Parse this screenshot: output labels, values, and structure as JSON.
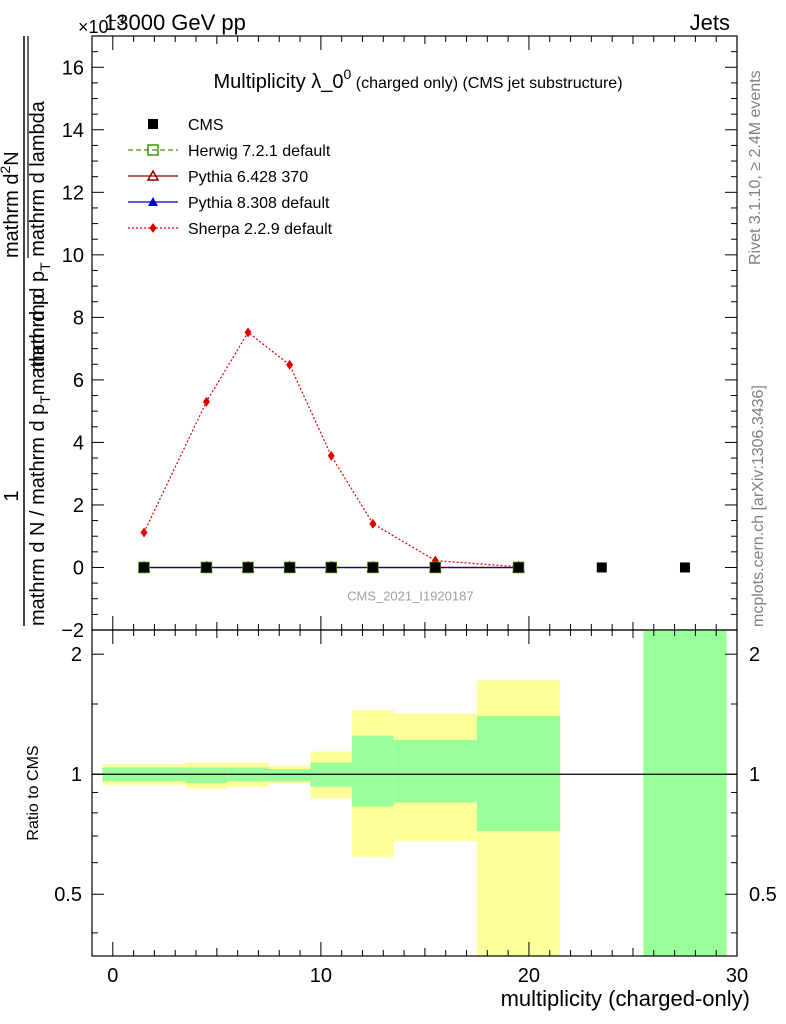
{
  "header": {
    "left": "13000 GeV pp",
    "right": "Jets",
    "exponent_base": "×10",
    "exponent_power": "−3"
  },
  "side_text": {
    "rivet": "Rivet 3.1.10, ≥ 2.4M events",
    "mcplots": "mcplots.cern.ch [arXiv:1306.3436]"
  },
  "watermark": "CMS_2021_I1920187",
  "title": {
    "main": "Multiplicity λ_0",
    "sup": "0",
    "suffix": " (charged only) (CMS jet substructure)"
  },
  "y_label": {
    "numerator": "1",
    "denominator": "mathrm d N / mathrm d p",
    "denominator_sub": "T",
    "denominator_tail": "mathrm d p",
    "right_num": "mathrm d",
    "right_sup": "2",
    "right_n": "N",
    "right_den": "mathrm d p",
    "right_den_sub": "T",
    "right_den_tail": " mathrm d lambda"
  },
  "ratio_ylabel": "Ratio to CMS",
  "x_label": "multiplicity (charged-only)",
  "colors": {
    "herwig": "#3a9a00",
    "pythia6": "#8b0000",
    "pythia8": "#0000cc",
    "sherpa": "#e00000",
    "cms": "#000000",
    "band_inner": "#99ff99",
    "band_outer": "#ffff99"
  },
  "chart_data": [
    {
      "type": "line",
      "title": "Multiplicity λ_0^0 (charged only) (CMS jet substructure)",
      "xlabel": "multiplicity (charged-only)",
      "ylabel": "1 / (mathrm d N / mathrm d p_T mathrm d p_T) · mathrm d^2N / (mathrm d p_T mathrm d lambda)",
      "xlim": [
        -1,
        30
      ],
      "ylim": [
        -2,
        17
      ],
      "y_scale_factor": "×10^-3",
      "x_ticks": [
        0,
        10,
        20,
        30
      ],
      "y_ticks": [
        -2,
        0,
        2,
        4,
        6,
        8,
        10,
        12,
        14,
        16
      ],
      "legend_position": "top-left",
      "series": [
        {
          "name": "CMS",
          "marker": "square",
          "x": [
            1.5,
            4.5,
            6.5,
            8.5,
            10.5,
            12.5,
            15.5,
            19.5,
            23.5,
            27.5
          ],
          "values": [
            0,
            0,
            0,
            0,
            0,
            0,
            0,
            0,
            0,
            0
          ]
        },
        {
          "name": "Herwig 7.2.1 default",
          "marker": "open-square",
          "line": "dashed",
          "x": [
            1.5,
            4.5,
            6.5,
            8.5,
            10.5,
            12.5,
            15.5,
            19.5
          ],
          "values": [
            0,
            0,
            0,
            0,
            0,
            0,
            0,
            0
          ]
        },
        {
          "name": "Pythia 6.428 370",
          "marker": "open-triangle",
          "line": "solid",
          "x": [
            1.5,
            4.5,
            6.5,
            8.5,
            10.5,
            12.5,
            15.5,
            19.5
          ],
          "values": [
            0,
            0,
            0,
            0,
            0,
            0,
            0,
            0
          ]
        },
        {
          "name": "Pythia 8.308 default",
          "marker": "triangle",
          "line": "solid",
          "x": [
            1.5,
            4.5,
            6.5,
            8.5,
            10.5,
            12.5,
            15.5,
            19.5
          ],
          "values": [
            0,
            0,
            0,
            0,
            0,
            0,
            0,
            0
          ]
        },
        {
          "name": "Sherpa 2.2.9 default",
          "marker": "diamond",
          "line": "dotted",
          "x": [
            1.5,
            4.5,
            6.5,
            8.5,
            10.5,
            12.5,
            15.5,
            19.5
          ],
          "values": [
            1.12,
            5.3,
            7.52,
            6.48,
            3.57,
            1.4,
            0.22,
            0.02
          ]
        }
      ]
    },
    {
      "type": "area",
      "ylabel": "Ratio to CMS",
      "xlim": [
        -1,
        30
      ],
      "ylim": [
        0.35,
        2.3
      ],
      "y_scale": "log",
      "y_ticks": [
        0.5,
        1,
        2
      ],
      "x_ticks": [
        0,
        10,
        20,
        30
      ],
      "reference_line": 1,
      "bins": [
        {
          "lo": -0.5,
          "hi": 3.5,
          "inner": [
            0.96,
            1.04
          ],
          "outer": [
            0.94,
            1.06
          ]
        },
        {
          "lo": 3.5,
          "hi": 5.5,
          "inner": [
            0.95,
            1.04
          ],
          "outer": [
            0.92,
            1.07
          ]
        },
        {
          "lo": 5.5,
          "hi": 7.5,
          "inner": [
            0.96,
            1.04
          ],
          "outer": [
            0.93,
            1.07
          ]
        },
        {
          "lo": 7.5,
          "hi": 9.5,
          "inner": [
            0.96,
            1.03
          ],
          "outer": [
            0.95,
            1.05
          ]
        },
        {
          "lo": 9.5,
          "hi": 11.5,
          "inner": [
            0.93,
            1.07
          ],
          "outer": [
            0.87,
            1.14
          ]
        },
        {
          "lo": 11.5,
          "hi": 13.5,
          "inner": [
            0.83,
            1.25
          ],
          "outer": [
            0.62,
            1.45
          ]
        },
        {
          "lo": 13.5,
          "hi": 17.5,
          "inner": [
            0.85,
            1.22
          ],
          "outer": [
            0.68,
            1.42
          ]
        },
        {
          "lo": 17.5,
          "hi": 21.5,
          "inner": [
            0.72,
            1.4
          ],
          "outer": [
            0.34,
            1.72
          ]
        },
        {
          "lo": 25.5,
          "hi": 29.5,
          "inner": [
            0.34,
            2.3
          ],
          "outer": [
            0.34,
            2.3
          ]
        }
      ]
    }
  ]
}
